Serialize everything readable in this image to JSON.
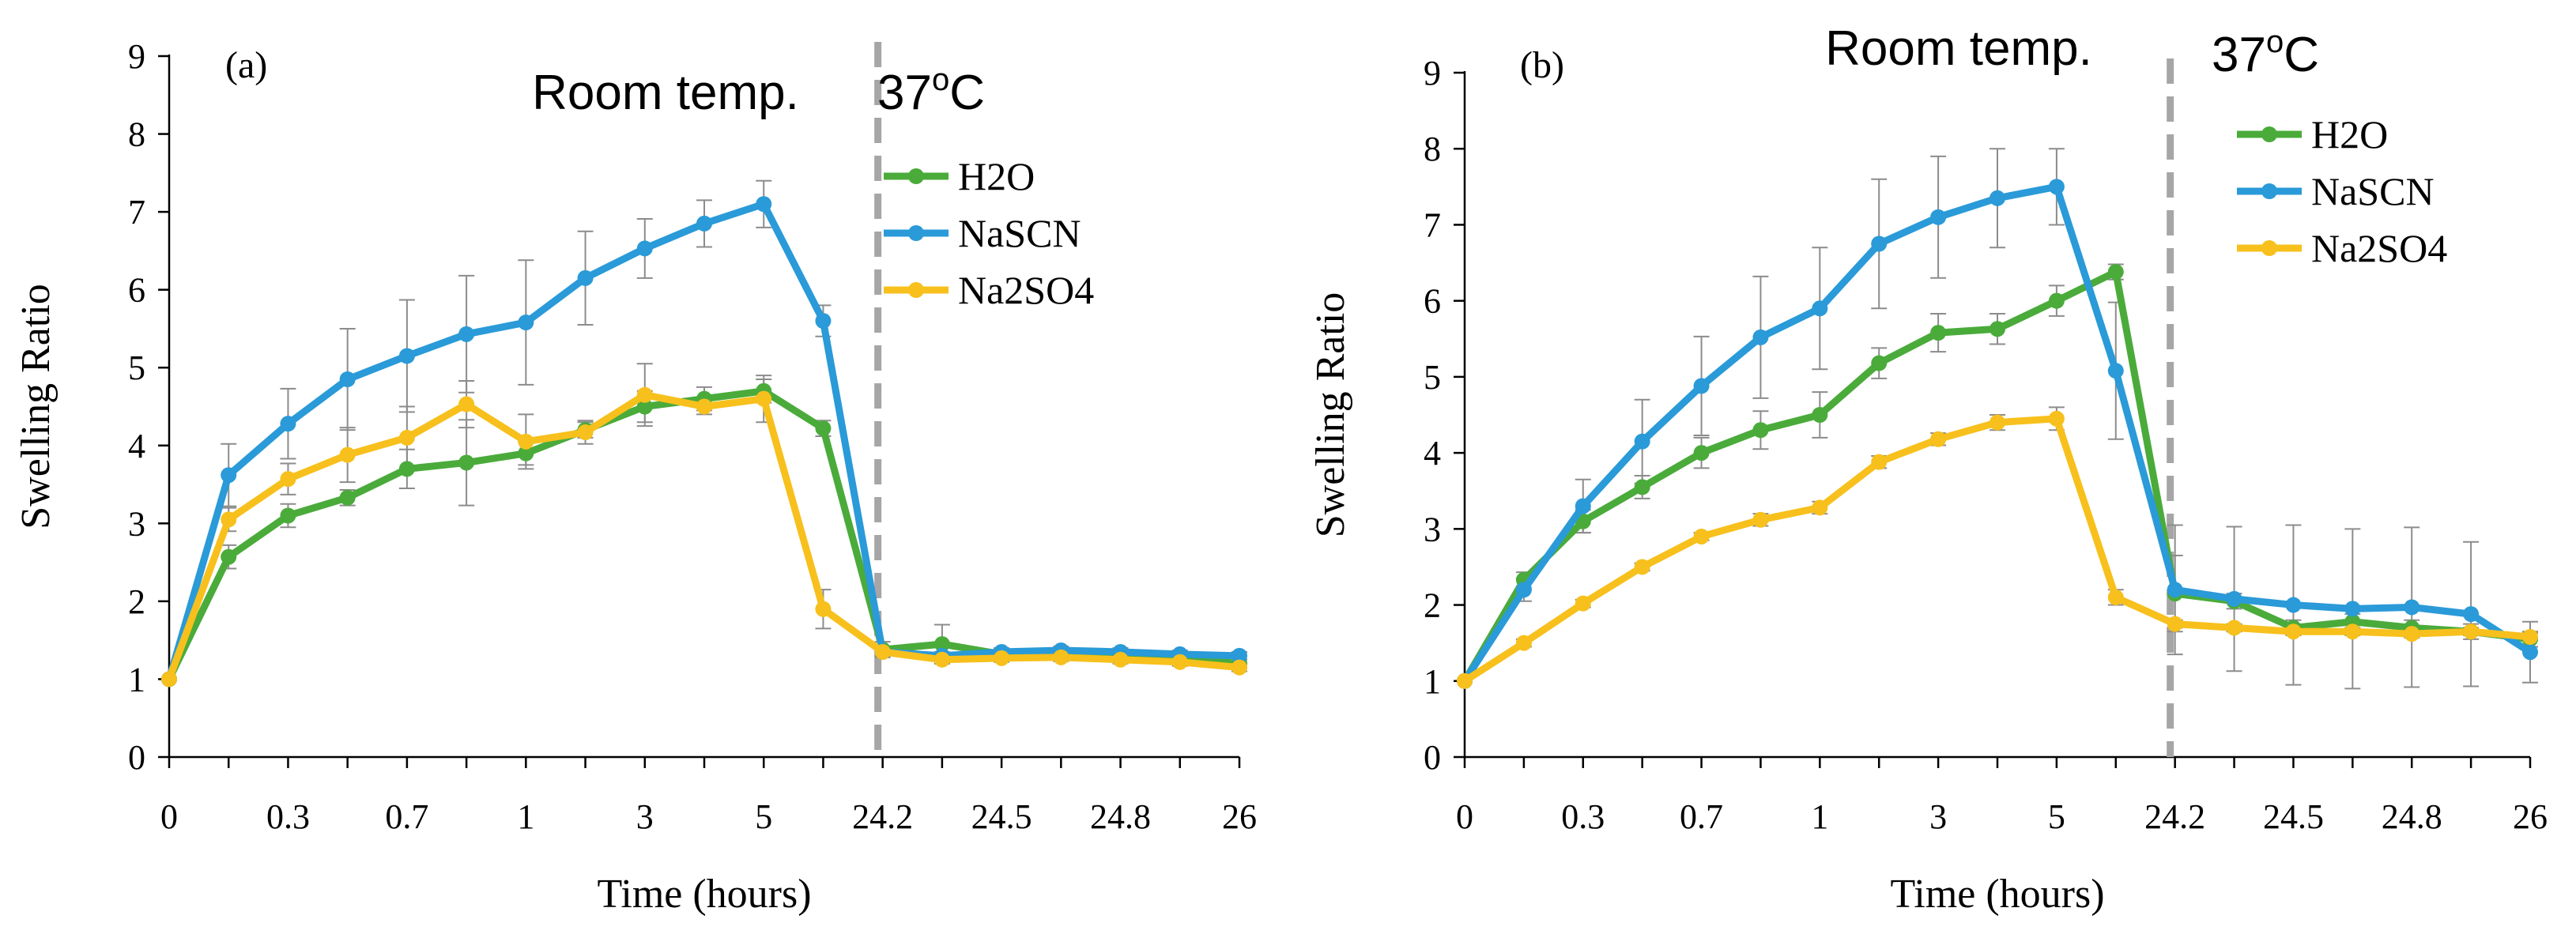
{
  "colors": {
    "h2o": "#4aab3b",
    "nascn": "#2a9ad8",
    "na2so4": "#f7c01c",
    "divider": "#a6a6a6",
    "error_bar": "#8c8c8c",
    "axis": "#000000"
  },
  "chart_data": [
    {
      "type": "line",
      "panel_label": "(a)",
      "xlabel": "Time (hours)",
      "ylabel": "Swelling Ratio",
      "ylim": [
        0,
        9
      ],
      "yticks": [
        0,
        1,
        2,
        3,
        4,
        5,
        6,
        7,
        8,
        9
      ],
      "x_tick_labels": [
        "0",
        "",
        "0.3",
        "",
        "0.7",
        "",
        "1",
        "",
        "3",
        "",
        "5",
        "",
        "24.2",
        "",
        "24.5",
        "",
        "24.8",
        "",
        "26"
      ],
      "phase_labels": {
        "left": "Room temp.",
        "right_base": "37",
        "right_sup": "o",
        "right_unit": "C"
      },
      "divider_after_index": 12,
      "grid": false,
      "legend_position": "right-middle",
      "series": [
        {
          "name": "H2O",
          "color_key": "h2o",
          "values": [
            1.0,
            2.57,
            3.1,
            3.33,
            3.7,
            3.78,
            3.9,
            4.2,
            4.5,
            4.6,
            4.7,
            4.22,
            1.38,
            1.45,
            1.32,
            1.33,
            1.3,
            1.27,
            1.2
          ],
          "errors": [
            0,
            0.15,
            0.15,
            0.1,
            0.25,
            0.55,
            0.15,
            0.1,
            0.2,
            0.15,
            0.15,
            0.1,
            0.1,
            0.25,
            0.05,
            0.05,
            0.05,
            0.05,
            0.05
          ]
        },
        {
          "name": "NaSCN",
          "color_key": "nascn",
          "values": [
            1.0,
            3.62,
            4.28,
            4.85,
            5.15,
            5.43,
            5.58,
            6.15,
            6.53,
            6.85,
            7.1,
            5.6,
            1.35,
            1.3,
            1.35,
            1.37,
            1.35,
            1.32,
            1.3
          ],
          "errors": [
            0,
            0.4,
            0.45,
            0.65,
            0.72,
            0.75,
            0.8,
            0.6,
            0.38,
            0.3,
            0.3,
            0.2,
            0.05,
            0.05,
            0.05,
            0.05,
            0.05,
            0.05,
            0.05
          ]
        },
        {
          "name": "Na2SO4",
          "color_key": "na2so4",
          "values": [
            1.0,
            3.05,
            3.57,
            3.88,
            4.1,
            4.53,
            4.05,
            4.17,
            4.65,
            4.5,
            4.6,
            1.9,
            1.35,
            1.25,
            1.27,
            1.28,
            1.25,
            1.22,
            1.15
          ],
          "errors": [
            0,
            0.15,
            0.2,
            0.35,
            0.4,
            0.3,
            0.35,
            0.15,
            0.4,
            0.1,
            0.3,
            0.25,
            0.05,
            0.05,
            0.05,
            0.05,
            0.05,
            0.05,
            0.05
          ]
        }
      ]
    },
    {
      "type": "line",
      "panel_label": "(b)",
      "xlabel": "Time (hours)",
      "ylabel": "Swelling Ratio",
      "ylim": [
        0,
        9
      ],
      "yticks": [
        0,
        1,
        2,
        3,
        4,
        5,
        6,
        7,
        8,
        9
      ],
      "x_tick_labels": [
        "0",
        "",
        "0.3",
        "",
        "0.7",
        "",
        "1",
        "",
        "3",
        "",
        "5",
        "",
        "24.2",
        "",
        "24.5",
        "",
        "24.8",
        "",
        "26"
      ],
      "phase_labels": {
        "left": "Room temp.",
        "right_base": "37",
        "right_sup": "o",
        "right_unit": "C"
      },
      "divider_after_index": 12,
      "grid": false,
      "legend_position": "top-right",
      "series": [
        {
          "name": "H2O",
          "color_key": "h2o",
          "values": [
            1.0,
            2.33,
            3.1,
            3.55,
            4.0,
            4.3,
            4.5,
            5.18,
            5.58,
            5.63,
            6.0,
            6.38,
            2.15,
            2.05,
            1.7,
            1.78,
            1.7,
            1.65,
            1.55
          ],
          "errors": [
            0,
            0.1,
            0.15,
            0.15,
            0.2,
            0.25,
            0.3,
            0.2,
            0.25,
            0.2,
            0.2,
            0.1,
            0.5,
            0.1,
            0.1,
            0.1,
            0.1,
            0.1,
            0.1
          ]
        },
        {
          "name": "NaSCN",
          "color_key": "nascn",
          "values": [
            1.0,
            2.2,
            3.3,
            4.15,
            4.88,
            5.52,
            5.9,
            6.75,
            7.1,
            7.35,
            7.5,
            5.08,
            2.2,
            2.08,
            2.0,
            1.95,
            1.97,
            1.88,
            1.38
          ],
          "errors": [
            0,
            0.15,
            0.35,
            0.55,
            0.65,
            0.8,
            0.8,
            0.85,
            0.8,
            0.65,
            0.5,
            0.9,
            0.85,
            0.95,
            1.05,
            1.05,
            1.05,
            0.95,
            0.4
          ]
        },
        {
          "name": "Na2SO4",
          "color_key": "na2so4",
          "values": [
            1.0,
            1.5,
            2.02,
            2.5,
            2.9,
            3.12,
            3.28,
            3.88,
            4.18,
            4.4,
            4.45,
            2.1,
            1.75,
            1.7,
            1.65,
            1.65,
            1.62,
            1.65,
            1.58
          ],
          "errors": [
            0,
            0.05,
            0.05,
            0.05,
            0.05,
            0.08,
            0.08,
            0.08,
            0.08,
            0.1,
            0.15,
            0.1,
            0.05,
            0.05,
            0.05,
            0.05,
            0.05,
            0.05,
            0.05
          ]
        }
      ]
    }
  ]
}
